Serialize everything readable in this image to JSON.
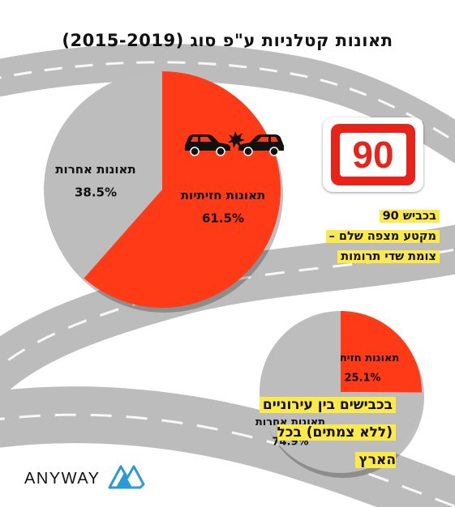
{
  "title": "תאונות קטלניות ע\"פ סוג (2015-2019)",
  "road_sign": {
    "number": "90"
  },
  "road_note": [
    "בכביש 90",
    "מקטע מצפה שלם –",
    "צומת שדי תרומות"
  ],
  "bottom_note": [
    "בכבישים בין עירוניים",
    "(ללא צמתים) בכל הארץ"
  ],
  "logo": {
    "text": "ANYWAY"
  },
  "colors": {
    "frontal": "#ff3a17",
    "other": "#bdbdbd",
    "highlight": "#fce94a",
    "road": "#3a3a3a"
  },
  "icons": [
    "car-collision-icon",
    "anyway-logo-icon"
  ],
  "chart_data": [
    {
      "type": "pie",
      "title": "",
      "slices": [
        {
          "label": "תאונות חזיתיות",
          "value": 61.5,
          "display": "61.5%",
          "color": "#ff3a17"
        },
        {
          "label": "תאונות אחרות",
          "value": 38.5,
          "display": "38.5%",
          "color": "#bdbdbd"
        }
      ]
    },
    {
      "type": "pie",
      "title": "",
      "slices": [
        {
          "label": "תאונות חזיתיות",
          "value": 25.1,
          "display": "25.1%",
          "color": "#ff3a17"
        },
        {
          "label": "תאונות אחרות",
          "value": 74.9,
          "display": "74.9%",
          "color": "#bdbdbd"
        }
      ]
    }
  ]
}
